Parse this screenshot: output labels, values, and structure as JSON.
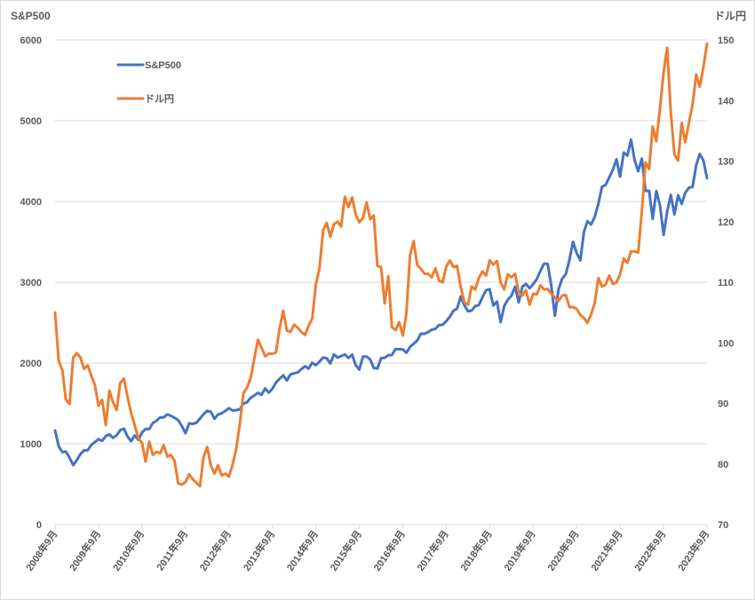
{
  "chart_data": {
    "type": "line",
    "title": "",
    "left_axis": {
      "title": "S&P500",
      "range": [
        0,
        6000
      ],
      "ticks": [
        0,
        1000,
        2000,
        3000,
        4000,
        5000,
        6000
      ]
    },
    "right_axis": {
      "title": "ドル円",
      "range": [
        70,
        150
      ],
      "ticks": [
        70,
        80,
        90,
        100,
        110,
        120,
        130,
        140,
        150
      ]
    },
    "x_ticks": [
      "2008年9月",
      "2009年9月",
      "2010年9月",
      "2011年9月",
      "2012年9月",
      "2013年9月",
      "2014年9月",
      "2015年9月",
      "2016年9月",
      "2017年9月",
      "2018年9月",
      "2019年9月",
      "2020年9月",
      "2021年9月",
      "2022年9月",
      "2023年9月"
    ],
    "x_start": "2008年9月",
    "x_interval": "monthly",
    "grid": true,
    "legend_position": "top-left",
    "series": [
      {
        "name": "S&P500",
        "axis": "left",
        "color": "#4472C4",
        "values": [
          1166,
          969,
          896,
          903,
          826,
          735,
          798,
          873,
          919,
          919,
          987,
          1021,
          1057,
          1036,
          1096,
          1115,
          1074,
          1104,
          1169,
          1187,
          1089,
          1031,
          1102,
          1049,
          1141,
          1183,
          1181,
          1258,
          1286,
          1327,
          1326,
          1364,
          1345,
          1321,
          1292,
          1219,
          1131,
          1253,
          1247,
          1258,
          1312,
          1366,
          1408,
          1398,
          1310,
          1362,
          1379,
          1407,
          1441,
          1412,
          1416,
          1426,
          1498,
          1515,
          1569,
          1598,
          1631,
          1606,
          1686,
          1633,
          1682,
          1757,
          1806,
          1848,
          1783,
          1859,
          1872,
          1884,
          1924,
          1960,
          1931,
          2003,
          1972,
          2018,
          2068,
          2059,
          1995,
          2105,
          2068,
          2086,
          2107,
          2063,
          2104,
          1972,
          1920,
          2079,
          2080,
          2044,
          1940,
          1932,
          2060,
          2065,
          2097,
          2099,
          2174,
          2171,
          2168,
          2126,
          2199,
          2239,
          2279,
          2364,
          2363,
          2384,
          2412,
          2423,
          2470,
          2472,
          2519,
          2575,
          2648,
          2674,
          2824,
          2714,
          2641,
          2648,
          2705,
          2718,
          2816,
          2902,
          2914,
          2712,
          2760,
          2507,
          2704,
          2784,
          2834,
          2946,
          2752,
          2942,
          2980,
          2926,
          2977,
          3038,
          3141,
          3231,
          3226,
          2954,
          2585,
          2912,
          3044,
          3100,
          3271,
          3500,
          3363,
          3270,
          3622,
          3756,
          3714,
          3811,
          3973,
          4181,
          4204,
          4298,
          4395,
          4523,
          4308,
          4605,
          4567,
          4766,
          4516,
          4374,
          4530,
          4132,
          4132,
          3785,
          4130,
          3955,
          3586,
          3872,
          4080,
          3840,
          4077,
          3970,
          4109,
          4169,
          4180,
          4450,
          4589,
          4508,
          4288
        ]
      },
      {
        "name": "ドル円",
        "axis": "right",
        "color": "#ED7D31",
        "values": [
          105,
          97,
          95.5,
          90.6,
          89.9,
          97.6,
          98.3,
          97.6,
          95.7,
          96.3,
          94.6,
          93.0,
          89.6,
          90.6,
          86.4,
          92.1,
          90.2,
          88.9,
          93.4,
          94.1,
          91.1,
          88.4,
          86.4,
          84.2,
          83.5,
          80.4,
          83.7,
          81.5,
          82.0,
          81.8,
          83.1,
          81.2,
          81.5,
          80.5,
          76.8,
          76.6,
          77.0,
          78.3,
          77.5,
          76.9,
          76.3,
          81.2,
          82.8,
          79.8,
          78.4,
          79.8,
          78.1,
          78.4,
          77.9,
          79.8,
          82.5,
          86.6,
          91.7,
          92.6,
          94.2,
          97.4,
          100.5,
          99.2,
          97.8,
          98.2,
          98.2,
          98.4,
          102.4,
          105.3,
          102.0,
          101.8,
          103.0,
          102.5,
          101.8,
          101.3,
          102.8,
          104.0,
          109.6,
          112.3,
          118.6,
          119.8,
          117.5,
          119.6,
          120.0,
          119.2,
          124.1,
          122.4,
          124.0,
          121.2,
          119.9,
          120.6,
          123.2,
          120.4,
          121.0,
          112.7,
          112.5,
          106.5,
          111.0,
          102.6,
          102.1,
          103.4,
          101.2,
          104.8,
          114.4,
          116.8,
          112.8,
          112.2,
          111.4,
          111.4,
          110.8,
          112.3,
          110.3,
          110.0,
          112.6,
          113.6,
          112.5,
          112.7,
          109.2,
          106.7,
          106.3,
          109.3,
          108.8,
          110.7,
          111.8,
          111.1,
          113.6,
          112.9,
          113.5,
          110.0,
          108.8,
          111.3,
          110.8,
          111.4,
          108.3,
          107.8,
          108.7,
          106.3,
          108.1,
          108.0,
          109.5,
          108.8,
          108.9,
          108.1,
          107.5,
          106.9,
          107.8,
          107.9,
          105.9,
          105.9,
          105.6,
          104.6,
          104.1,
          103.3,
          104.7,
          106.6,
          110.7,
          109.3,
          109.6,
          111.1,
          109.7,
          110.0,
          111.3,
          113.9,
          113.2,
          115.1,
          115.1,
          114.9,
          121.7,
          129.8,
          128.7,
          135.7,
          133.3,
          138.7,
          144.7,
          148.7,
          138.1,
          131.1,
          130.1,
          136.3,
          133.1,
          136.3,
          139.3,
          144.3,
          142.3,
          145.5,
          149.4
        ]
      }
    ]
  }
}
